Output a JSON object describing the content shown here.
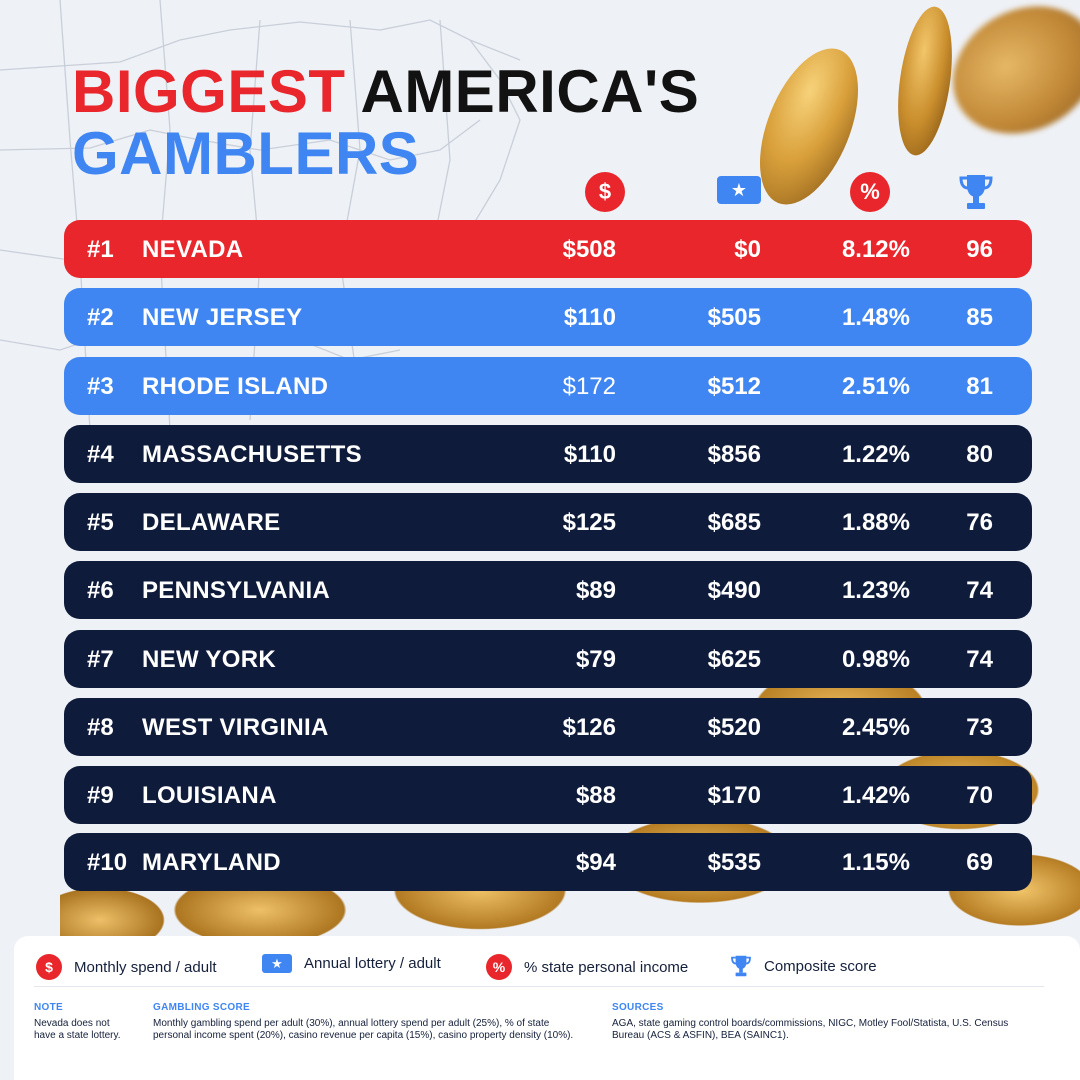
{
  "title": {
    "part1": "BIGGEST",
    "part2": "AMERICA'S",
    "part3": "GAMBLERS"
  },
  "column_icons": {
    "spend": "$",
    "lottery": "★",
    "pct": "%",
    "score": "trophy-icon"
  },
  "rows": [
    {
      "rank": "#1",
      "state": "NEVADA",
      "spend": "$508",
      "lottery": "$0",
      "pct": "8.12%",
      "score": "96"
    },
    {
      "rank": "#2",
      "state": "NEW JERSEY",
      "spend": "$110",
      "lottery": "$505",
      "pct": "1.48%",
      "score": "85"
    },
    {
      "rank": "#3",
      "state": "RHODE ISLAND",
      "spend": "$172",
      "lottery": "$512",
      "pct": "2.51%",
      "score": "81"
    },
    {
      "rank": "#4",
      "state": "MASSACHUSETTS",
      "spend": "$110",
      "lottery": "$856",
      "pct": "1.22%",
      "score": "80"
    },
    {
      "rank": "#5",
      "state": "DELAWARE",
      "spend": "$125",
      "lottery": "$685",
      "pct": "1.88%",
      "score": "76"
    },
    {
      "rank": "#6",
      "state": "PENNSYLVANIA",
      "spend": "$89",
      "lottery": "$490",
      "pct": "1.23%",
      "score": "74"
    },
    {
      "rank": "#7",
      "state": "NEW YORK",
      "spend": "$79",
      "lottery": "$625",
      "pct": "0.98%",
      "score": "74"
    },
    {
      "rank": "#8",
      "state": "WEST VIRGINIA",
      "spend": "$126",
      "lottery": "$520",
      "pct": "2.45%",
      "score": "73"
    },
    {
      "rank": "#9",
      "state": "LOUISIANA",
      "spend": "$88",
      "lottery": "$170",
      "pct": "1.42%",
      "score": "70"
    },
    {
      "rank": "#10",
      "state": "MARYLAND",
      "spend": "$94",
      "lottery": "$535",
      "pct": "1.15%",
      "score": "69"
    }
  ],
  "legend": {
    "spend": "Monthly spend / adult",
    "lottery": "Annual lottery / adult",
    "pct": "% state personal income",
    "score": "Composite score"
  },
  "footer": {
    "note_title": "NOTE",
    "note_text": "Nevada does not have a state lottery.",
    "score_title": "GAMBLING SCORE",
    "score_text": "Monthly gambling spend per adult (30%), annual lottery spend per adult (25%), % of state personal income spent (20%), casino revenue per capita (15%), casino property density (10%).",
    "sources_title": "SOURCES",
    "sources_text": "AGA, state gaming control boards/commissions, NIGC, Motley Fool/Statista, U.S. Census Bureau (ACS & ASFIN), BEA (SAINC1)."
  },
  "colors": {
    "red": "#e8262b",
    "blue": "#3f86f2",
    "navy": "#0f1b3a",
    "background": "#eef1f6"
  }
}
